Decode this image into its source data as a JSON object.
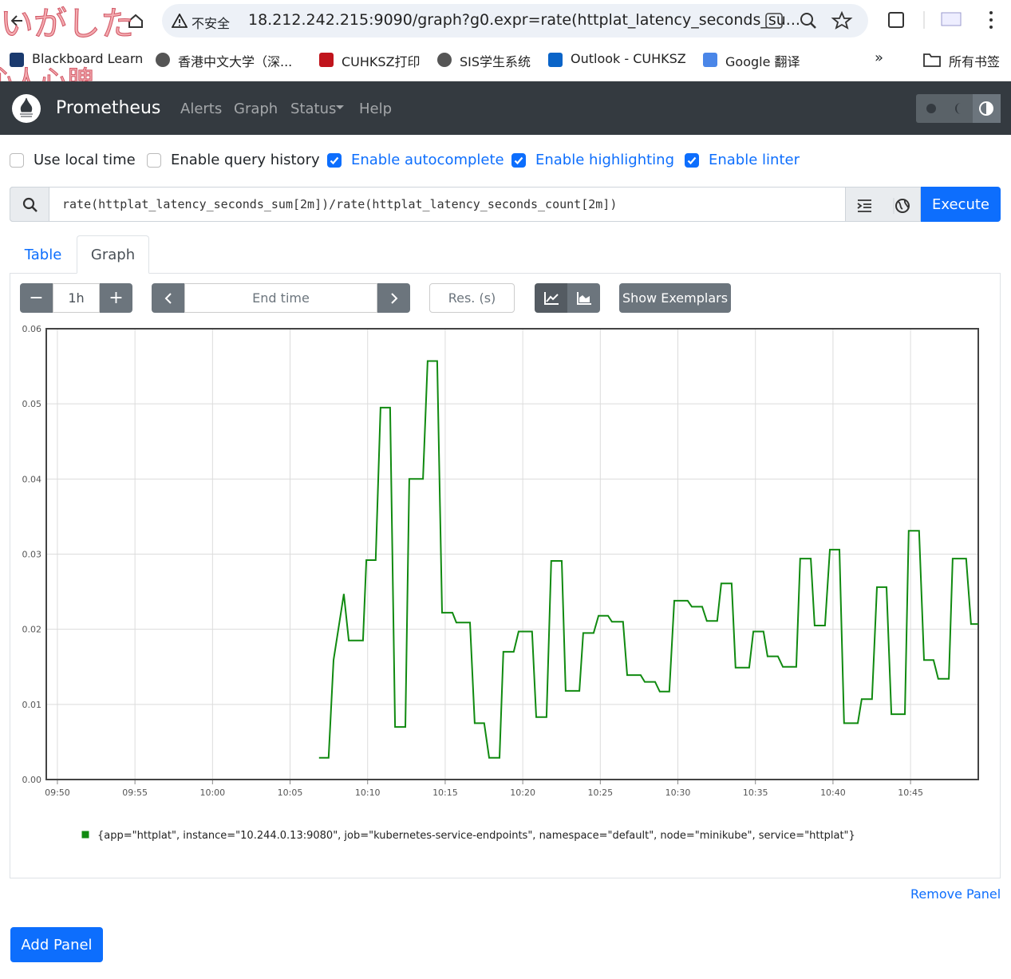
{
  "browser": {
    "insecure_label": "不安全",
    "url": "18.212.242.215:9090/graph?g0.expr=rate(httplat_latency_seconds_su...",
    "bookmarks": [
      "Blackboard Learn",
      "香港中文大学（深...",
      "CUHKSZ打印",
      "SIS学生系统",
      "Outlook - CUHKSZ",
      "Google 翻译"
    ],
    "all_bookmarks": "所有书签"
  },
  "overlay": [
    "いがした",
    "沁人心脾"
  ],
  "navbar": {
    "brand": "Prometheus",
    "links": [
      "Alerts",
      "Graph",
      "Status",
      "Help"
    ]
  },
  "options": [
    {
      "label": "Use local time",
      "checked": false
    },
    {
      "label": "Enable query history",
      "checked": false
    },
    {
      "label": "Enable autocomplete",
      "checked": true
    },
    {
      "label": "Enable highlighting",
      "checked": true
    },
    {
      "label": "Enable linter",
      "checked": true
    }
  ],
  "query": {
    "expression": "rate(httplat_latency_seconds_sum[2m])/rate(httplat_latency_seconds_count[2m])",
    "execute": "Execute"
  },
  "tabs": [
    "Table",
    "Graph"
  ],
  "active_tab": "Graph",
  "controls": {
    "range": "1h",
    "end_time": "End time",
    "resolution": "Res. (s)",
    "show_exemplars": "Show Exemplars"
  },
  "chart_data": {
    "type": "line",
    "x": [
      "10:06:52",
      "10:07:29",
      "10:07:48",
      "10:08:28",
      "10:08:47",
      "10:09:42",
      "10:09:55",
      "10:10:31",
      "10:10:50",
      "10:11:27",
      "10:11:46",
      "10:12:26",
      "10:12:41",
      "10:13:34",
      "10:13:52",
      "10:14:29",
      "10:14:48",
      "10:15:28",
      "10:15:43",
      "10:16:36",
      "10:16:54",
      "10:17:31",
      "10:17:50",
      "10:18:30",
      "10:18:45",
      "10:19:25",
      "10:19:44",
      "10:20:36",
      "10:20:52",
      "10:21:32",
      "10:21:50",
      "10:22:31",
      "10:22:46",
      "10:23:39",
      "10:23:54",
      "10:24:34",
      "10:24:53",
      "10:25:30",
      "10:25:45",
      "10:26:28",
      "10:26:44",
      "10:27:36",
      "10:27:52",
      "10:28:32",
      "10:28:50",
      "10:29:27",
      "10:29:46",
      "10:30:38",
      "10:30:54",
      "10:31:34",
      "10:31:52",
      "10:32:32",
      "10:32:48",
      "10:33:28",
      "10:33:43",
      "10:34:36",
      "10:34:52",
      "10:35:31",
      "10:35:47",
      "10:36:27",
      "10:36:46",
      "10:37:38",
      "10:37:53",
      "10:38:34",
      "10:38:49",
      "10:39:29",
      "10:39:48",
      "10:40:25",
      "10:40:43",
      "10:41:36",
      "10:41:51",
      "10:42:31",
      "10:42:50",
      "10:43:27",
      "10:43:46",
      "10:44:38",
      "10:44:53",
      "10:45:33",
      "10:45:52",
      "10:46:29",
      "10:46:47",
      "10:47:28",
      "10:47:43",
      "10:48:35",
      "10:48:54",
      "10:49:22"
    ],
    "series": [
      {
        "name": "{app=\"httplat\", instance=\"10.244.0.13:9080\", job=\"kubernetes-service-endpoints\", namespace=\"default\", node=\"minikube\", service=\"httplat\"}",
        "color": "#108a10",
        "values": [
          0.0029,
          0.0029,
          0.0159,
          0.0247,
          0.0185,
          0.0185,
          0.0292,
          0.0292,
          0.0495,
          0.0495,
          0.007,
          0.007,
          0.04,
          0.04,
          0.0557,
          0.0557,
          0.0222,
          0.0222,
          0.0209,
          0.0209,
          0.0075,
          0.0075,
          0.0029,
          0.0029,
          0.017,
          0.017,
          0.0197,
          0.0197,
          0.0083,
          0.0083,
          0.0291,
          0.0291,
          0.0118,
          0.0118,
          0.0195,
          0.0195,
          0.0218,
          0.0218,
          0.021,
          0.021,
          0.0139,
          0.0139,
          0.013,
          0.013,
          0.0117,
          0.0117,
          0.0238,
          0.0238,
          0.023,
          0.023,
          0.0211,
          0.0211,
          0.0261,
          0.0261,
          0.0149,
          0.0149,
          0.0197,
          0.0197,
          0.0164,
          0.0164,
          0.015,
          0.015,
          0.0294,
          0.0294,
          0.0205,
          0.0205,
          0.0306,
          0.0306,
          0.0075,
          0.0075,
          0.0107,
          0.0107,
          0.0256,
          0.0256,
          0.0087,
          0.0087,
          0.0331,
          0.0331,
          0.0159,
          0.0159,
          0.0134,
          0.0134,
          0.0294,
          0.0294,
          0.0207,
          0.0207
        ]
      }
    ],
    "xlim": [
      "09:49:17",
      "10:49:22"
    ],
    "xticks": [
      "09:50",
      "09:55",
      "10:00",
      "10:05",
      "10:10",
      "10:15",
      "10:20",
      "10:25",
      "10:30",
      "10:35",
      "10:40",
      "10:45"
    ],
    "ylim": [
      0,
      0.06
    ],
    "yticks": [
      {
        "value": 0,
        "label": "0.00"
      },
      {
        "value": 0.01,
        "label": "0.01"
      },
      {
        "value": 0.02,
        "label": "0.02"
      },
      {
        "value": 0.03,
        "label": "0.03"
      },
      {
        "value": 0.04,
        "label": "0.04"
      },
      {
        "value": 0.05,
        "label": "0.05"
      },
      {
        "value": 0.06,
        "label": "0.06"
      }
    ],
    "grid": true
  },
  "remove_panel": "Remove Panel",
  "add_panel": "Add Panel"
}
